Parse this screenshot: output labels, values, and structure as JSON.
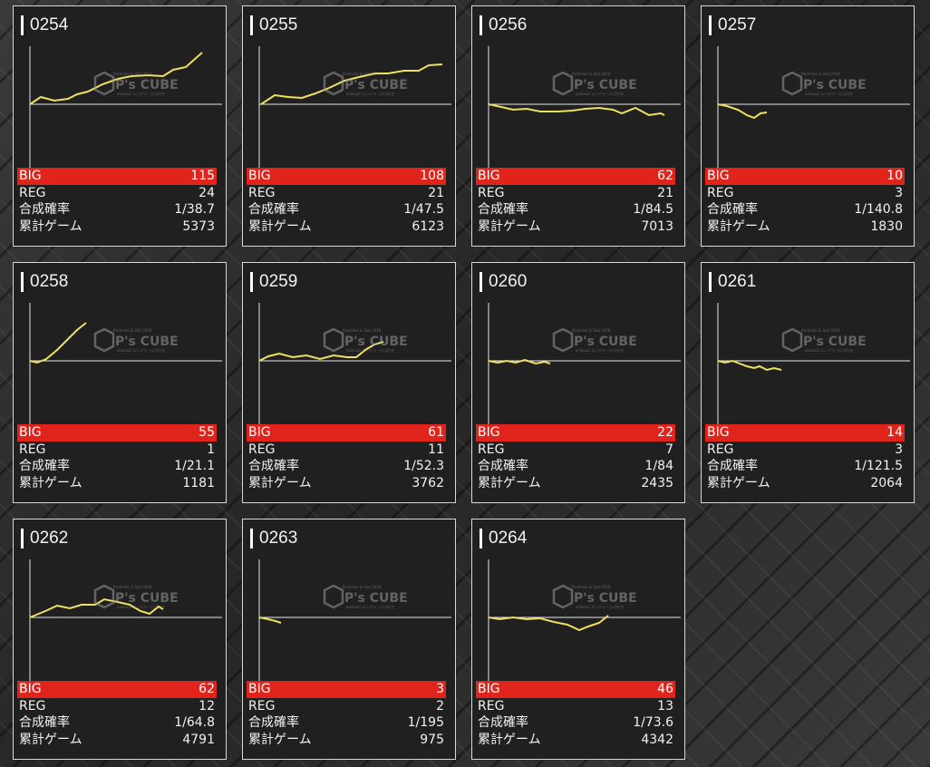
{
  "labels": {
    "big": "BIG",
    "reg": "REG",
    "rate": "合成確率",
    "games": "累計ゲーム"
  },
  "watermark": {
    "brand": "P's CUBE",
    "small_top": "Pachinko & Slot 2018",
    "small_bottom": "anikou2 エンデラ・ロゴ付き"
  },
  "colors": {
    "big_bar": "#e0241b",
    "line": "#f0e060",
    "card_bg": "#202020"
  },
  "machines": [
    {
      "id": "0254",
      "big": "115",
      "reg": "24",
      "rate": "1/38.7",
      "games": "5373"
    },
    {
      "id": "0255",
      "big": "108",
      "reg": "21",
      "rate": "1/47.5",
      "games": "6123"
    },
    {
      "id": "0256",
      "big": "62",
      "reg": "21",
      "rate": "1/84.5",
      "games": "7013"
    },
    {
      "id": "0257",
      "big": "10",
      "reg": "3",
      "rate": "1/140.8",
      "games": "1830"
    },
    {
      "id": "0258",
      "big": "55",
      "reg": "1",
      "rate": "1/21.1",
      "games": "1181"
    },
    {
      "id": "0259",
      "big": "61",
      "reg": "11",
      "rate": "1/52.3",
      "games": "3762"
    },
    {
      "id": "0260",
      "big": "22",
      "reg": "7",
      "rate": "1/84",
      "games": "2435"
    },
    {
      "id": "0261",
      "big": "14",
      "reg": "3",
      "rate": "1/121.5",
      "games": "2064"
    },
    {
      "id": "0262",
      "big": "62",
      "reg": "12",
      "rate": "1/64.8",
      "games": "4791"
    },
    {
      "id": "0263",
      "big": "3",
      "reg": "2",
      "rate": "1/195",
      "games": "975"
    },
    {
      "id": "0264",
      "big": "46",
      "reg": "13",
      "rate": "1/73.6",
      "games": "4342"
    }
  ]
}
